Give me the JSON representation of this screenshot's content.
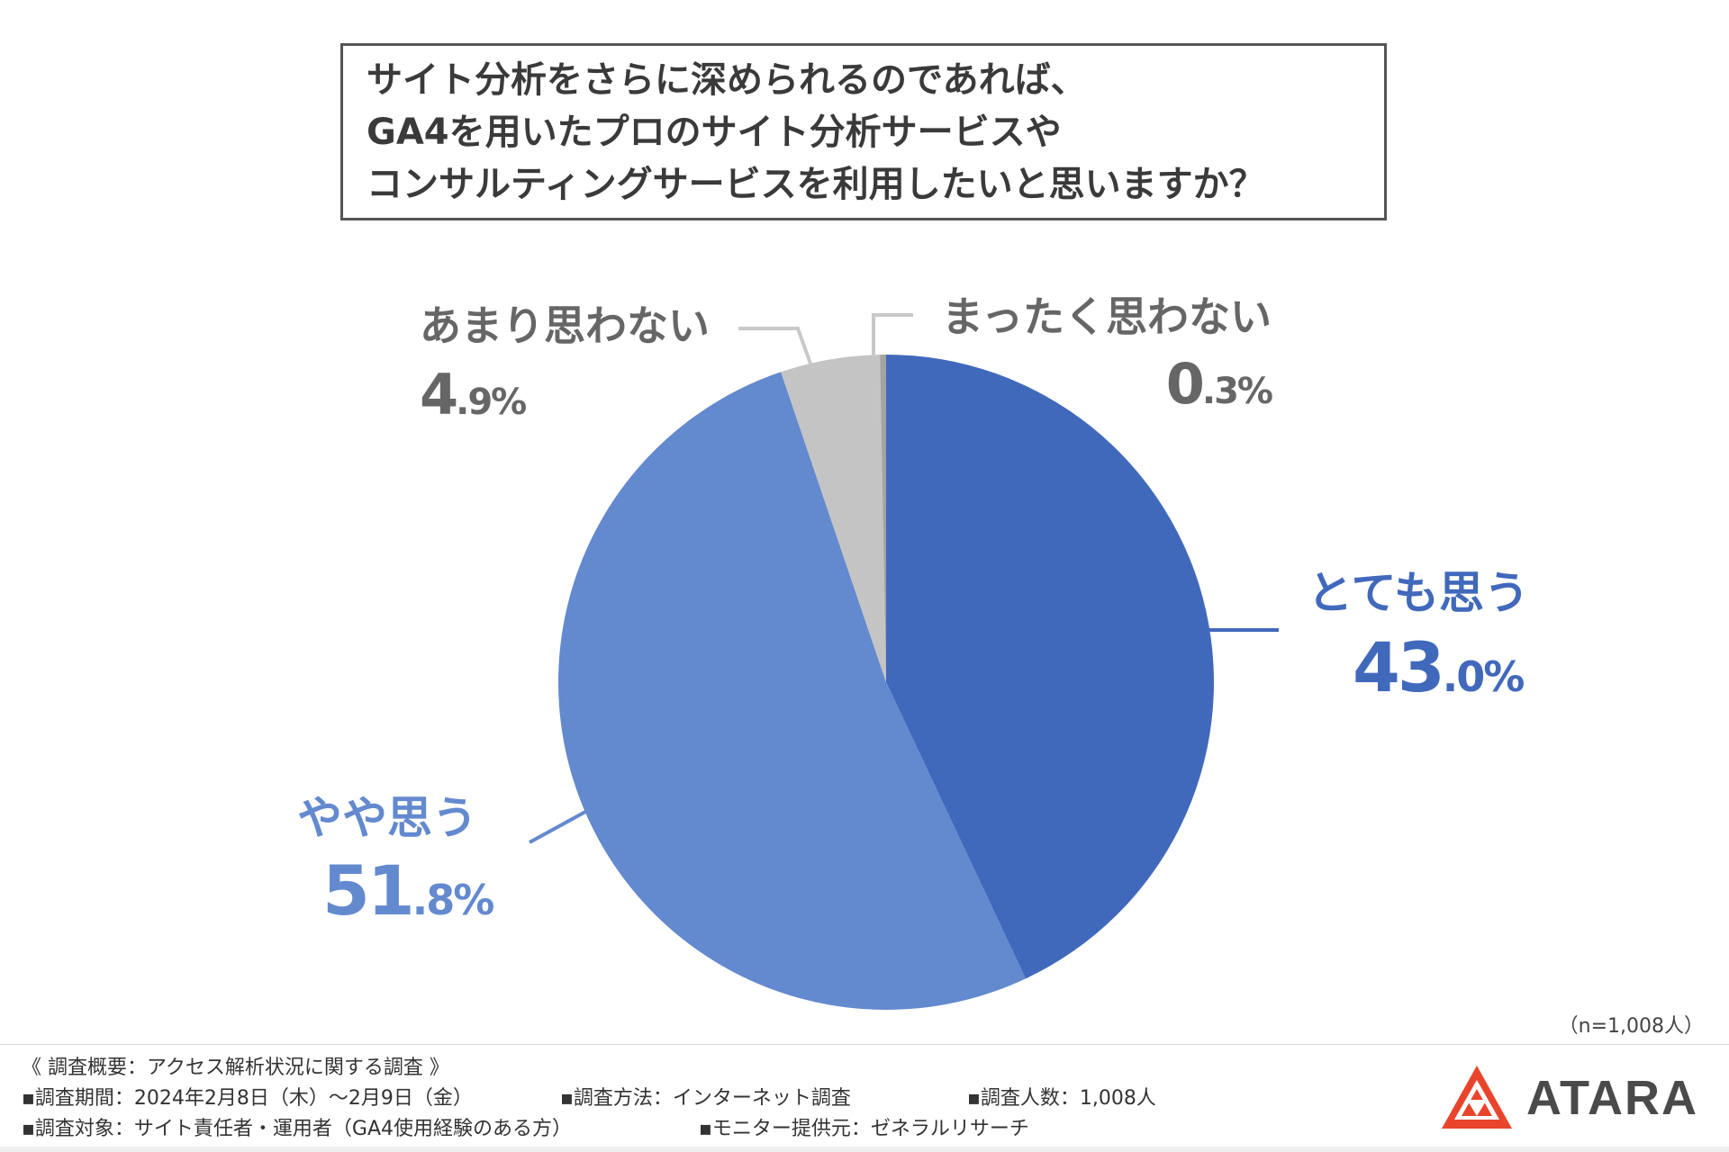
{
  "question": {
    "lines": [
      "サイト分析をさらに深められるのであれば、",
      "GA4を用いたプロのサイト分析サービスや",
      "コンサルティングサービスを利用したいと思いますか？"
    ]
  },
  "chart_data": {
    "type": "pie",
    "title": "サイト分析をさらに深められるのであれば、GA4を用いたプロのサイト分析サービスやコンサルティングサービスを利用したいと思いますか？",
    "slices": [
      {
        "label": "とても思う",
        "value": 43.0,
        "int": "43",
        "dec": ".0%",
        "color": "#4169BB"
      },
      {
        "label": "やや思う",
        "value": 51.8,
        "int": "51",
        "dec": ".8%",
        "color": "#6389CF"
      },
      {
        "label": "あまり思わない",
        "value": 4.9,
        "int": "4",
        "dec": ".9%",
        "color": "#C4C4C4"
      },
      {
        "label": "まったく思わない",
        "value": 0.3,
        "int": "0",
        "dec": ".3%",
        "color": "#A3A3A3"
      }
    ],
    "label_colors": {
      "とても思う": "#4169BB",
      "やや思う": "#6389CF",
      "あまり思わない": "#666666",
      "まったく思わない": "#666666"
    },
    "sample": "（n=1,008人）"
  },
  "footer": {
    "heading": "《 調査概要：アクセス解析状況に関する調査 》",
    "items": [
      "▪調査期間：2024年2月8日（木）～2月9日（金）",
      "▪調査方法：インターネット調査",
      "▪調査人数：1,008人",
      "▪調査対象：サイト責任者・運用者（GA4使用経験のある方）",
      "▪モニター提供元：ゼネラルリサーチ"
    ]
  },
  "logo": {
    "text": "ATARA",
    "color": "#E8452C"
  }
}
